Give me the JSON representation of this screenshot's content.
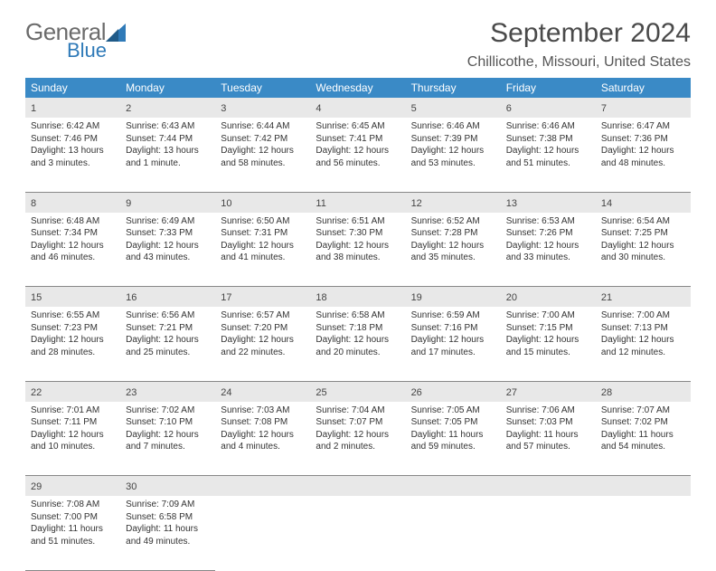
{
  "brand": {
    "general": "General",
    "blue": "Blue"
  },
  "title": "September 2024",
  "location": "Chillicothe, Missouri, United States",
  "colors": {
    "header_bg": "#3a8ac6",
    "header_text": "#ffffff",
    "daynum_bg": "#e8e8e8",
    "rule": "#888888",
    "accent": "#2f7ab8"
  },
  "weekdays": [
    "Sunday",
    "Monday",
    "Tuesday",
    "Wednesday",
    "Thursday",
    "Friday",
    "Saturday"
  ],
  "weeks": [
    [
      {
        "n": "1",
        "sr": "Sunrise: 6:42 AM",
        "ss": "Sunset: 7:46 PM",
        "d1": "Daylight: 13 hours",
        "d2": "and 3 minutes."
      },
      {
        "n": "2",
        "sr": "Sunrise: 6:43 AM",
        "ss": "Sunset: 7:44 PM",
        "d1": "Daylight: 13 hours",
        "d2": "and 1 minute."
      },
      {
        "n": "3",
        "sr": "Sunrise: 6:44 AM",
        "ss": "Sunset: 7:42 PM",
        "d1": "Daylight: 12 hours",
        "d2": "and 58 minutes."
      },
      {
        "n": "4",
        "sr": "Sunrise: 6:45 AM",
        "ss": "Sunset: 7:41 PM",
        "d1": "Daylight: 12 hours",
        "d2": "and 56 minutes."
      },
      {
        "n": "5",
        "sr": "Sunrise: 6:46 AM",
        "ss": "Sunset: 7:39 PM",
        "d1": "Daylight: 12 hours",
        "d2": "and 53 minutes."
      },
      {
        "n": "6",
        "sr": "Sunrise: 6:46 AM",
        "ss": "Sunset: 7:38 PM",
        "d1": "Daylight: 12 hours",
        "d2": "and 51 minutes."
      },
      {
        "n": "7",
        "sr": "Sunrise: 6:47 AM",
        "ss": "Sunset: 7:36 PM",
        "d1": "Daylight: 12 hours",
        "d2": "and 48 minutes."
      }
    ],
    [
      {
        "n": "8",
        "sr": "Sunrise: 6:48 AM",
        "ss": "Sunset: 7:34 PM",
        "d1": "Daylight: 12 hours",
        "d2": "and 46 minutes."
      },
      {
        "n": "9",
        "sr": "Sunrise: 6:49 AM",
        "ss": "Sunset: 7:33 PM",
        "d1": "Daylight: 12 hours",
        "d2": "and 43 minutes."
      },
      {
        "n": "10",
        "sr": "Sunrise: 6:50 AM",
        "ss": "Sunset: 7:31 PM",
        "d1": "Daylight: 12 hours",
        "d2": "and 41 minutes."
      },
      {
        "n": "11",
        "sr": "Sunrise: 6:51 AM",
        "ss": "Sunset: 7:30 PM",
        "d1": "Daylight: 12 hours",
        "d2": "and 38 minutes."
      },
      {
        "n": "12",
        "sr": "Sunrise: 6:52 AM",
        "ss": "Sunset: 7:28 PM",
        "d1": "Daylight: 12 hours",
        "d2": "and 35 minutes."
      },
      {
        "n": "13",
        "sr": "Sunrise: 6:53 AM",
        "ss": "Sunset: 7:26 PM",
        "d1": "Daylight: 12 hours",
        "d2": "and 33 minutes."
      },
      {
        "n": "14",
        "sr": "Sunrise: 6:54 AM",
        "ss": "Sunset: 7:25 PM",
        "d1": "Daylight: 12 hours",
        "d2": "and 30 minutes."
      }
    ],
    [
      {
        "n": "15",
        "sr": "Sunrise: 6:55 AM",
        "ss": "Sunset: 7:23 PM",
        "d1": "Daylight: 12 hours",
        "d2": "and 28 minutes."
      },
      {
        "n": "16",
        "sr": "Sunrise: 6:56 AM",
        "ss": "Sunset: 7:21 PM",
        "d1": "Daylight: 12 hours",
        "d2": "and 25 minutes."
      },
      {
        "n": "17",
        "sr": "Sunrise: 6:57 AM",
        "ss": "Sunset: 7:20 PM",
        "d1": "Daylight: 12 hours",
        "d2": "and 22 minutes."
      },
      {
        "n": "18",
        "sr": "Sunrise: 6:58 AM",
        "ss": "Sunset: 7:18 PM",
        "d1": "Daylight: 12 hours",
        "d2": "and 20 minutes."
      },
      {
        "n": "19",
        "sr": "Sunrise: 6:59 AM",
        "ss": "Sunset: 7:16 PM",
        "d1": "Daylight: 12 hours",
        "d2": "and 17 minutes."
      },
      {
        "n": "20",
        "sr": "Sunrise: 7:00 AM",
        "ss": "Sunset: 7:15 PM",
        "d1": "Daylight: 12 hours",
        "d2": "and 15 minutes."
      },
      {
        "n": "21",
        "sr": "Sunrise: 7:00 AM",
        "ss": "Sunset: 7:13 PM",
        "d1": "Daylight: 12 hours",
        "d2": "and 12 minutes."
      }
    ],
    [
      {
        "n": "22",
        "sr": "Sunrise: 7:01 AM",
        "ss": "Sunset: 7:11 PM",
        "d1": "Daylight: 12 hours",
        "d2": "and 10 minutes."
      },
      {
        "n": "23",
        "sr": "Sunrise: 7:02 AM",
        "ss": "Sunset: 7:10 PM",
        "d1": "Daylight: 12 hours",
        "d2": "and 7 minutes."
      },
      {
        "n": "24",
        "sr": "Sunrise: 7:03 AM",
        "ss": "Sunset: 7:08 PM",
        "d1": "Daylight: 12 hours",
        "d2": "and 4 minutes."
      },
      {
        "n": "25",
        "sr": "Sunrise: 7:04 AM",
        "ss": "Sunset: 7:07 PM",
        "d1": "Daylight: 12 hours",
        "d2": "and 2 minutes."
      },
      {
        "n": "26",
        "sr": "Sunrise: 7:05 AM",
        "ss": "Sunset: 7:05 PM",
        "d1": "Daylight: 11 hours",
        "d2": "and 59 minutes."
      },
      {
        "n": "27",
        "sr": "Sunrise: 7:06 AM",
        "ss": "Sunset: 7:03 PM",
        "d1": "Daylight: 11 hours",
        "d2": "and 57 minutes."
      },
      {
        "n": "28",
        "sr": "Sunrise: 7:07 AM",
        "ss": "Sunset: 7:02 PM",
        "d1": "Daylight: 11 hours",
        "d2": "and 54 minutes."
      }
    ],
    [
      {
        "n": "29",
        "sr": "Sunrise: 7:08 AM",
        "ss": "Sunset: 7:00 PM",
        "d1": "Daylight: 11 hours",
        "d2": "and 51 minutes."
      },
      {
        "n": "30",
        "sr": "Sunrise: 7:09 AM",
        "ss": "Sunset: 6:58 PM",
        "d1": "Daylight: 11 hours",
        "d2": "and 49 minutes."
      },
      null,
      null,
      null,
      null,
      null
    ]
  ]
}
